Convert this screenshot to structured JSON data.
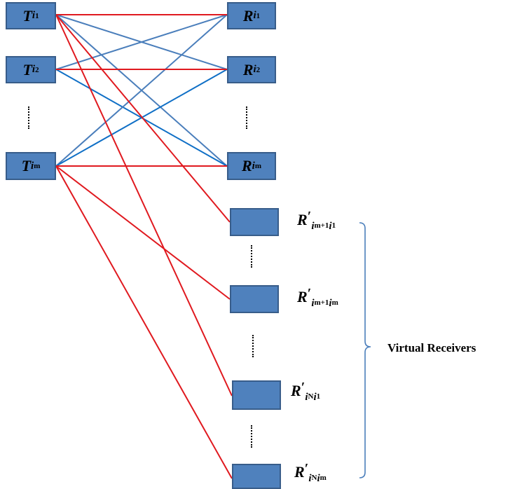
{
  "transmitters": [
    {
      "symbol": "T",
      "sub": "i",
      "subsub": "1"
    },
    {
      "symbol": "T",
      "sub": "i",
      "subsub": "2"
    },
    {
      "symbol": "T",
      "sub": "i",
      "subsub": "m"
    }
  ],
  "receivers": [
    {
      "symbol": "R",
      "sub": "i",
      "subsub": "1"
    },
    {
      "symbol": "R",
      "sub": "i",
      "subsub": "2"
    },
    {
      "symbol": "R",
      "sub": "i",
      "subsub": "m"
    }
  ],
  "virtual_receivers": [
    {
      "symbol": "R",
      "prime": "′",
      "sub": "i",
      "subsub": "m+1",
      "sub2": "i",
      "subsub2": "1"
    },
    {
      "symbol": "R",
      "prime": "′",
      "sub": "i",
      "subsub": "m+1",
      "sub2": "i",
      "subsub2": "m"
    },
    {
      "symbol": "R",
      "prime": "′",
      "sub": "i",
      "subsub": "N",
      "sub2": "i",
      "subsub2": "1"
    },
    {
      "symbol": "R",
      "prime": "′",
      "sub": "i",
      "subsub": "N",
      "sub2": "i",
      "subsub2": "m"
    }
  ],
  "virtual_group_label": "Virtual Receivers",
  "colors": {
    "node_fill": "#4f81bd",
    "node_border": "#385d8a",
    "link_direct": "#e0191f",
    "link_cross": "#4a7ebb",
    "link_cross_dark": "#0f6fc6"
  }
}
